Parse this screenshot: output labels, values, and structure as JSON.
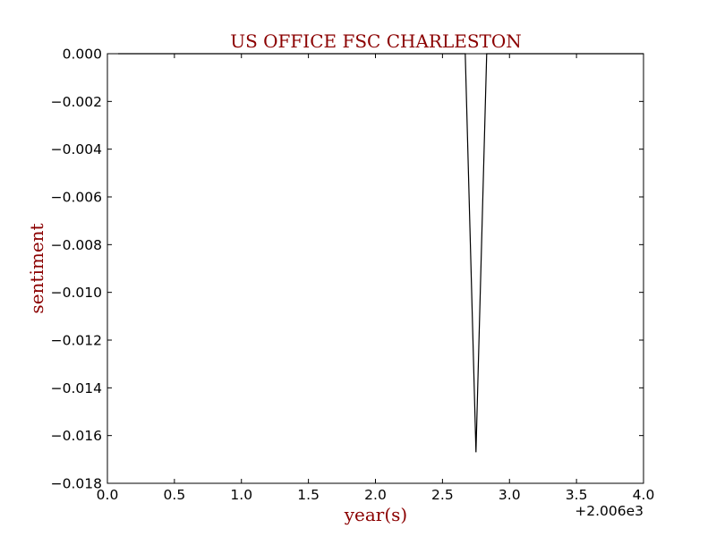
{
  "chart_data": {
    "type": "line",
    "title": "US OFFICE FSC CHARLESTON",
    "xlabel": "year(s)",
    "ylabel": "sentiment",
    "x_offset_label": "+2.006e3",
    "xlim": [
      0.0,
      4.0
    ],
    "ylim": [
      -0.018,
      0.0
    ],
    "x_ticks": [
      0.0,
      0.5,
      1.0,
      1.5,
      2.0,
      2.5,
      3.0,
      3.5,
      4.0
    ],
    "x_tick_labels": [
      "0.0",
      "0.5",
      "1.0",
      "1.5",
      "2.0",
      "2.5",
      "3.0",
      "3.5",
      "4.0"
    ],
    "y_ticks": [
      0.0,
      -0.002,
      -0.004,
      -0.006,
      -0.008,
      -0.01,
      -0.012,
      -0.014,
      -0.016,
      -0.018
    ],
    "y_tick_labels": [
      "0.000",
      "−0.002",
      "−0.004",
      "−0.006",
      "−0.008",
      "−0.010",
      "−0.012",
      "−0.014",
      "−0.016",
      "−0.018"
    ],
    "grid": false,
    "series": [
      {
        "x": [
          0.08,
          2.67,
          2.75,
          2.83,
          4.0
        ],
        "y": [
          0.0,
          0.0,
          -0.0167,
          0.0,
          0.0
        ]
      }
    ],
    "colors": {
      "line": "#000000",
      "title": "#8b0000",
      "axis_title": "#8b0000"
    }
  }
}
